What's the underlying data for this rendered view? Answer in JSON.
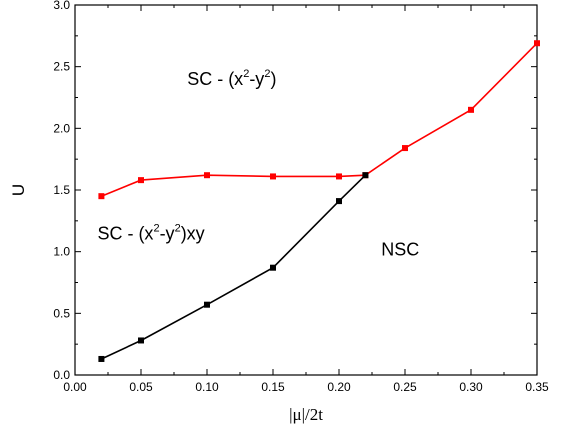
{
  "chart_data": {
    "type": "line",
    "xlabel": "|μ|/2t",
    "ylabel": "U",
    "xlim": [
      0.0,
      0.35
    ],
    "ylim": [
      0.0,
      3.0
    ],
    "xticks": [
      "0.00",
      "0.05",
      "0.10",
      "0.15",
      "0.20",
      "0.25",
      "0.30",
      "0.35"
    ],
    "yticks": [
      "0.0",
      "0.5",
      "1.0",
      "1.5",
      "2.0",
      "2.5",
      "3.0"
    ],
    "grid": false,
    "series": [
      {
        "color": "#ff0000",
        "marker": "square",
        "x": [
          0.02,
          0.05,
          0.1,
          0.15,
          0.2,
          0.22,
          0.25,
          0.3,
          0.35
        ],
        "y": [
          1.45,
          1.58,
          1.62,
          1.61,
          1.61,
          1.62,
          1.84,
          2.15,
          2.69
        ]
      },
      {
        "color": "#000000",
        "marker": "square",
        "x": [
          0.02,
          0.05,
          0.1,
          0.15,
          0.2,
          0.22
        ],
        "y": [
          0.13,
          0.28,
          0.57,
          0.87,
          1.41,
          1.62
        ]
      }
    ],
    "annotations": [
      {
        "parts": [
          "SC - (x",
          "2",
          "-y",
          "2",
          ")"
        ],
        "x": 0.085,
        "y": 2.35
      },
      {
        "parts": [
          "SC - (x",
          "2",
          "-y",
          "2",
          ")xy"
        ],
        "x": 0.017,
        "y": 1.1
      },
      {
        "parts": [
          "NSC"
        ],
        "x": 0.232,
        "y": 0.97
      }
    ]
  }
}
